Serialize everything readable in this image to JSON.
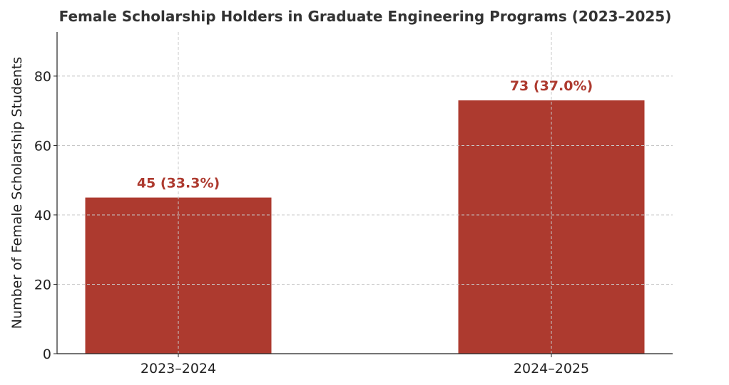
{
  "chart_data": {
    "type": "bar",
    "title": "Female Scholarship Holders in Graduate Engineering Programs (2023–2025)",
    "xlabel": "",
    "ylabel": "Number of Female Scholarship Students",
    "categories": [
      "2023–2024",
      "2024–2025"
    ],
    "values": [
      45,
      73
    ],
    "data_labels": [
      "45 (33.3%)",
      "73 (37.0%)"
    ],
    "percentages": [
      33.3,
      37.0
    ],
    "ylim": [
      0,
      92.7
    ],
    "yticks": [
      0,
      20,
      40,
      60,
      80
    ],
    "grid": true,
    "bar_color": "#ad3a2f",
    "label_color": "#ad3a2f"
  }
}
